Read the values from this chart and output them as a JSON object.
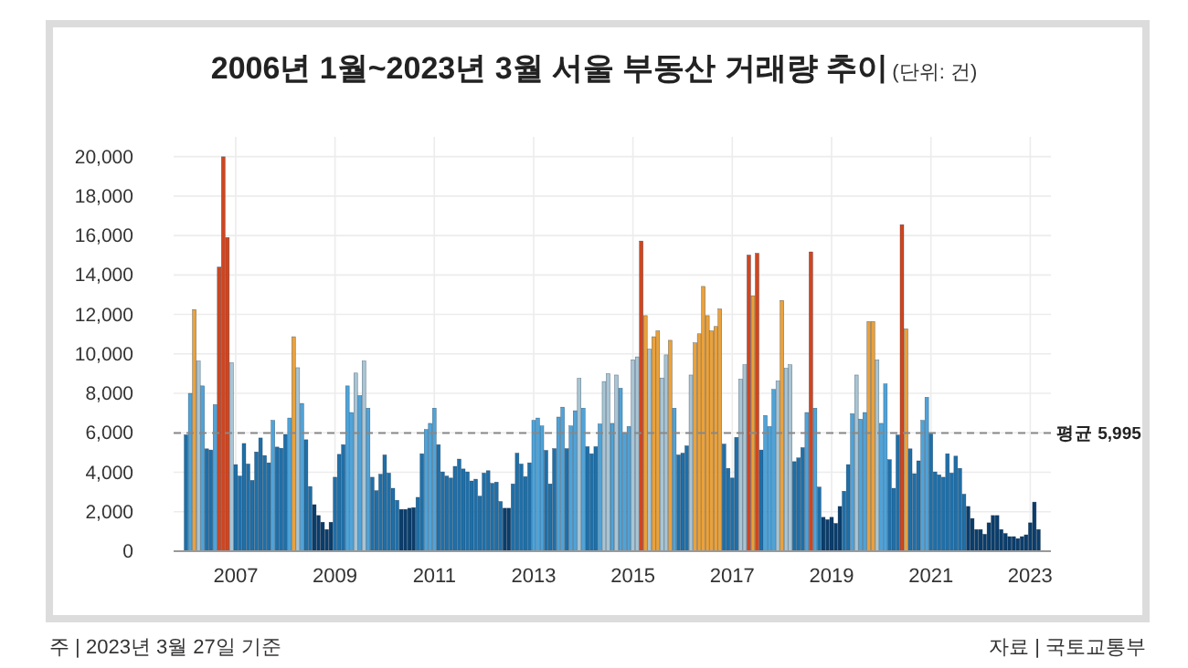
{
  "chart_data": {
    "type": "bar",
    "title": "2006년 1월~2023년 3월 서울 부동산 거래량 추이",
    "subtitle": "(단위: 건)",
    "annotations": [
      "주 | 2023년 3월 27일 기준",
      "자료 | 국토교통부"
    ],
    "x": [
      "2006-01",
      "2006-02",
      "2006-03",
      "2006-04",
      "2006-05",
      "2006-06",
      "2006-07",
      "2006-08",
      "2006-09",
      "2006-10",
      "2006-11",
      "2006-12",
      "2007-01",
      "2007-02",
      "2007-03",
      "2007-04",
      "2007-05",
      "2007-06",
      "2007-07",
      "2007-08",
      "2007-09",
      "2007-10",
      "2007-11",
      "2007-12",
      "2008-01",
      "2008-02",
      "2008-03",
      "2008-04",
      "2008-05",
      "2008-06",
      "2008-07",
      "2008-08",
      "2008-09",
      "2008-10",
      "2008-11",
      "2008-12",
      "2009-01",
      "2009-02",
      "2009-03",
      "2009-04",
      "2009-05",
      "2009-06",
      "2009-07",
      "2009-08",
      "2009-09",
      "2009-10",
      "2009-11",
      "2009-12",
      "2010-01",
      "2010-02",
      "2010-03",
      "2010-04",
      "2010-05",
      "2010-06",
      "2010-07",
      "2010-08",
      "2010-09",
      "2010-10",
      "2010-11",
      "2010-12",
      "2011-01",
      "2011-02",
      "2011-03",
      "2011-04",
      "2011-05",
      "2011-06",
      "2011-07",
      "2011-08",
      "2011-09",
      "2011-10",
      "2011-11",
      "2011-12",
      "2012-01",
      "2012-02",
      "2012-03",
      "2012-04",
      "2012-05",
      "2012-06",
      "2012-07",
      "2012-08",
      "2012-09",
      "2012-10",
      "2012-11",
      "2012-12",
      "2013-01",
      "2013-02",
      "2013-03",
      "2013-04",
      "2013-05",
      "2013-06",
      "2013-07",
      "2013-08",
      "2013-09",
      "2013-10",
      "2013-11",
      "2013-12",
      "2014-01",
      "2014-02",
      "2014-03",
      "2014-04",
      "2014-05",
      "2014-06",
      "2014-07",
      "2014-08",
      "2014-09",
      "2014-10",
      "2014-11",
      "2014-12",
      "2015-01",
      "2015-02",
      "2015-03",
      "2015-04",
      "2015-05",
      "2015-06",
      "2015-07",
      "2015-08",
      "2015-09",
      "2015-10",
      "2015-11",
      "2015-12",
      "2016-01",
      "2016-02",
      "2016-03",
      "2016-04",
      "2016-05",
      "2016-06",
      "2016-07",
      "2016-08",
      "2016-09",
      "2016-10",
      "2016-11",
      "2016-12",
      "2017-01",
      "2017-02",
      "2017-03",
      "2017-04",
      "2017-05",
      "2017-06",
      "2017-07",
      "2017-08",
      "2017-09",
      "2017-10",
      "2017-11",
      "2017-12",
      "2018-01",
      "2018-02",
      "2018-03",
      "2018-04",
      "2018-05",
      "2018-06",
      "2018-07",
      "2018-08",
      "2018-09",
      "2018-10",
      "2018-11",
      "2018-12",
      "2019-01",
      "2019-02",
      "2019-03",
      "2019-04",
      "2019-05",
      "2019-06",
      "2019-07",
      "2019-08",
      "2019-09",
      "2019-10",
      "2019-11",
      "2019-12",
      "2020-01",
      "2020-02",
      "2020-03",
      "2020-04",
      "2020-05",
      "2020-06",
      "2020-07",
      "2020-08",
      "2020-09",
      "2020-10",
      "2020-11",
      "2020-12",
      "2021-01",
      "2021-02",
      "2021-03",
      "2021-04",
      "2021-05",
      "2021-06",
      "2021-07",
      "2021-08",
      "2021-09",
      "2021-10",
      "2021-11",
      "2021-12",
      "2022-01",
      "2022-02",
      "2022-03",
      "2022-04",
      "2022-05",
      "2022-06",
      "2022-07",
      "2022-08",
      "2022-09",
      "2022-10",
      "2022-11",
      "2022-12",
      "2023-01",
      "2023-02",
      "2023-03"
    ],
    "values": [
      5900,
      8000,
      12250,
      9640,
      8380,
      5190,
      5130,
      7430,
      14400,
      19990,
      15900,
      9550,
      4390,
      3810,
      5460,
      4420,
      3590,
      5030,
      5740,
      4850,
      4480,
      6630,
      5280,
      5220,
      5920,
      6750,
      10870,
      9300,
      7490,
      5650,
      3280,
      2360,
      1810,
      1470,
      1100,
      1470,
      3750,
      4910,
      5400,
      8380,
      7030,
      9030,
      7890,
      9640,
      7250,
      3750,
      3070,
      3900,
      4880,
      3960,
      3190,
      2580,
      2120,
      2120,
      2180,
      2210,
      2730,
      4940,
      6170,
      6480,
      7250,
      5400,
      4020,
      3810,
      3710,
      4300,
      4670,
      4170,
      4020,
      3560,
      3650,
      2790,
      3960,
      4080,
      3440,
      3500,
      2520,
      2180,
      2180,
      3410,
      4970,
      4420,
      3780,
      4480,
      6630,
      6750,
      6350,
      5110,
      3410,
      5200,
      6800,
      7300,
      5200,
      6350,
      7120,
      8760,
      7250,
      5300,
      4940,
      5300,
      6450,
      8600,
      9000,
      6480,
      8930,
      8260,
      6010,
      6320,
      9700,
      9850,
      15720,
      11940,
      10250,
      10870,
      11170,
      8780,
      9950,
      10690,
      7250,
      4880,
      4970,
      5340,
      8930,
      10560,
      11020,
      13420,
      11940,
      11170,
      11390,
      12280,
      5430,
      4200,
      3710,
      5770,
      8720,
      9450,
      15010,
      12950,
      15100,
      5130,
      6880,
      6320,
      8200,
      8630,
      12710,
      9270,
      9450,
      4540,
      4730,
      5250,
      7030,
      15170,
      7250,
      3250,
      1720,
      1600,
      1720,
      1410,
      2270,
      3040,
      4390,
      6970,
      8930,
      6690,
      7030,
      11640,
      11640,
      9700,
      6480,
      8480,
      4640,
      3190,
      5890,
      16550,
      11270,
      5190,
      3930,
      4580,
      6630,
      7800,
      5960,
      4020,
      3870,
      3750,
      4940,
      3960,
      4820,
      4200,
      2890,
      2270,
      1660,
      1100,
      1100,
      860,
      1440,
      1810,
      1810,
      1100,
      900,
      740,
      740,
      640,
      740,
      830,
      1440,
      2490,
      1100
    ],
    "colors": [
      "#1f6fa8",
      "#4fa3d8",
      "#eba13a",
      "#a9c4d2",
      "#4fa3d8",
      "#1f6fa8",
      "#1f6fa8",
      "#4fa3d8",
      "#d2451e",
      "#d2451e",
      "#d2451e",
      "#a9c4d2",
      "#1f6fa8",
      "#1f6fa8",
      "#1f6fa8",
      "#1f6fa8",
      "#1f6fa8",
      "#1f6fa8",
      "#1f6fa8",
      "#1f6fa8",
      "#1f6fa8",
      "#4fa3d8",
      "#1f6fa8",
      "#1f6fa8",
      "#1f6fa8",
      "#4fa3d8",
      "#eba13a",
      "#a9c4d2",
      "#4fa3d8",
      "#1f6fa8",
      "#1f6fa8",
      "#0b3d6b",
      "#0b3d6b",
      "#0b3d6b",
      "#0b3d6b",
      "#0b3d6b",
      "#1f6fa8",
      "#1f6fa8",
      "#1f6fa8",
      "#4fa3d8",
      "#4fa3d8",
      "#a9c4d2",
      "#4fa3d8",
      "#a9c4d2",
      "#4fa3d8",
      "#1f6fa8",
      "#1f6fa8",
      "#1f6fa8",
      "#1f6fa8",
      "#1f6fa8",
      "#1f6fa8",
      "#1f6fa8",
      "#0b3d6b",
      "#0b3d6b",
      "#0b3d6b",
      "#0b3d6b",
      "#1f6fa8",
      "#1f6fa8",
      "#4fa3d8",
      "#4fa3d8",
      "#4fa3d8",
      "#1f6fa8",
      "#1f6fa8",
      "#1f6fa8",
      "#1f6fa8",
      "#1f6fa8",
      "#1f6fa8",
      "#1f6fa8",
      "#1f6fa8",
      "#1f6fa8",
      "#1f6fa8",
      "#1f6fa8",
      "#1f6fa8",
      "#1f6fa8",
      "#1f6fa8",
      "#1f6fa8",
      "#1f6fa8",
      "#0b3d6b",
      "#0b3d6b",
      "#1f6fa8",
      "#1f6fa8",
      "#1f6fa8",
      "#1f6fa8",
      "#1f6fa8",
      "#4fa3d8",
      "#4fa3d8",
      "#4fa3d8",
      "#1f6fa8",
      "#1f6fa8",
      "#1f6fa8",
      "#4fa3d8",
      "#4fa3d8",
      "#1f6fa8",
      "#4fa3d8",
      "#4fa3d8",
      "#a9c4d2",
      "#4fa3d8",
      "#1f6fa8",
      "#1f6fa8",
      "#1f6fa8",
      "#4fa3d8",
      "#a9c4d2",
      "#a9c4d2",
      "#4fa3d8",
      "#a9c4d2",
      "#4fa3d8",
      "#4fa3d8",
      "#4fa3d8",
      "#a9c4d2",
      "#a9c4d2",
      "#d2451e",
      "#eba13a",
      "#a9c4d2",
      "#eba13a",
      "#eba13a",
      "#a9c4d2",
      "#a9c4d2",
      "#eba13a",
      "#4fa3d8",
      "#1f6fa8",
      "#1f6fa8",
      "#1f6fa8",
      "#a9c4d2",
      "#eba13a",
      "#eba13a",
      "#eba13a",
      "#eba13a",
      "#eba13a",
      "#eba13a",
      "#eba13a",
      "#1f6fa8",
      "#1f6fa8",
      "#1f6fa8",
      "#1f6fa8",
      "#a9c4d2",
      "#a9c4d2",
      "#d2451e",
      "#eba13a",
      "#d2451e",
      "#1f6fa8",
      "#4fa3d8",
      "#4fa3d8",
      "#4fa3d8",
      "#a9c4d2",
      "#eba13a",
      "#a9c4d2",
      "#a9c4d2",
      "#1f6fa8",
      "#1f6fa8",
      "#1f6fa8",
      "#4fa3d8",
      "#d2451e",
      "#4fa3d8",
      "#1f6fa8",
      "#0b3d6b",
      "#0b3d6b",
      "#0b3d6b",
      "#0b3d6b",
      "#0b3d6b",
      "#1f6fa8",
      "#1f6fa8",
      "#4fa3d8",
      "#a9c4d2",
      "#4fa3d8",
      "#4fa3d8",
      "#eba13a",
      "#eba13a",
      "#a9c4d2",
      "#4fa3d8",
      "#4fa3d8",
      "#1f6fa8",
      "#1f6fa8",
      "#1f6fa8",
      "#d2451e",
      "#eba13a",
      "#1f6fa8",
      "#1f6fa8",
      "#1f6fa8",
      "#4fa3d8",
      "#4fa3d8",
      "#1f6fa8",
      "#1f6fa8",
      "#1f6fa8",
      "#1f6fa8",
      "#1f6fa8",
      "#1f6fa8",
      "#1f6fa8",
      "#1f6fa8",
      "#1f6fa8",
      "#0b3d6b",
      "#0b3d6b",
      "#0b3d6b",
      "#0b3d6b",
      "#0b3d6b",
      "#0b3d6b",
      "#0b3d6b",
      "#0b3d6b",
      "#0b3d6b",
      "#0b3d6b",
      "#0b3d6b",
      "#0b3d6b",
      "#0b3d6b",
      "#0b3d6b",
      "#0b3d6b",
      "#0b3d6b",
      "#0b3d6b",
      "#0b3d6b"
    ],
    "xlim": [
      "2005-10",
      "2023-06"
    ],
    "xticks": [
      {
        "value": "2007-01",
        "label": "2007"
      },
      {
        "value": "2009-01",
        "label": "2009"
      },
      {
        "value": "2011-01",
        "label": "2011"
      },
      {
        "value": "2013-01",
        "label": "2013"
      },
      {
        "value": "2015-01",
        "label": "2015"
      },
      {
        "value": "2017-01",
        "label": "2017"
      },
      {
        "value": "2019-01",
        "label": "2019"
      },
      {
        "value": "2021-01",
        "label": "2021"
      },
      {
        "value": "2023-01",
        "label": "2023"
      }
    ],
    "ylim": [
      0,
      21000
    ],
    "yticks": [
      0,
      {
        "value": 2000,
        "label": "2,000"
      },
      {
        "value": 4000,
        "label": "4,000"
      },
      {
        "value": 6000,
        "label": "6,000"
      },
      {
        "value": 8000,
        "label": "8,000"
      },
      {
        "value": 10000,
        "label": "10,000"
      },
      {
        "value": 12000,
        "label": "12,000"
      },
      {
        "value": 14000,
        "label": "14,000"
      },
      {
        "value": 16000,
        "label": "16,000"
      },
      {
        "value": 18000,
        "label": "18,000"
      },
      {
        "value": 20000,
        "label": "20,000"
      }
    ],
    "grid": true,
    "ref_lines": [
      {
        "axis": "y",
        "value": 5995,
        "label": "평균 5,995",
        "color": "#888888",
        "line_style": "dashed"
      }
    ]
  }
}
